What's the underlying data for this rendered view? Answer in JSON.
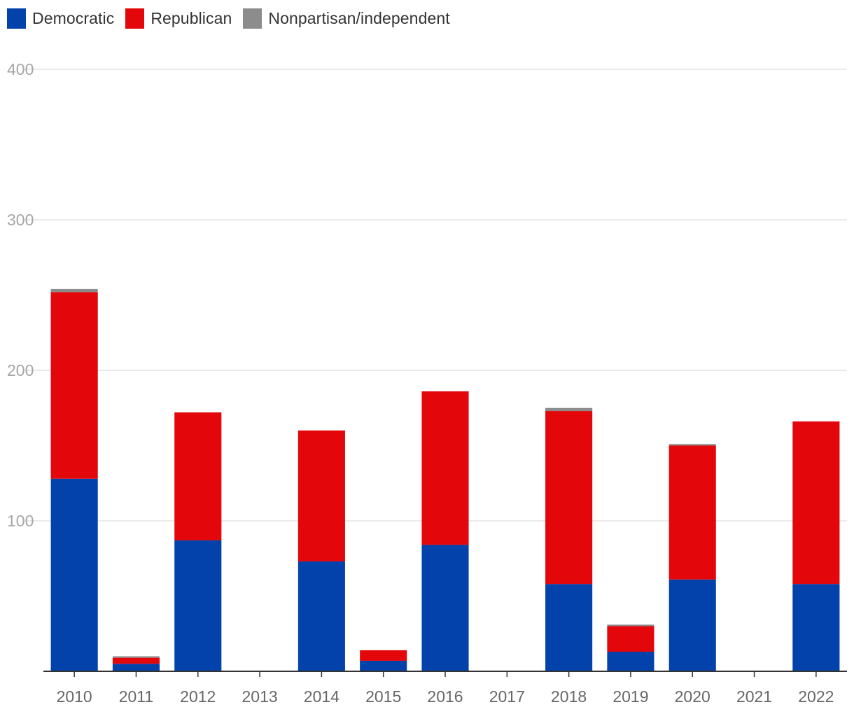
{
  "legend": [
    {
      "name": "Democratic",
      "color": "#0342ab"
    },
    {
      "name": "Republican",
      "color": "#e3070b"
    },
    {
      "name": "Nonpartisan/independent",
      "color": "#8c8c8c"
    }
  ],
  "chart_data": {
    "type": "bar",
    "stacked": true,
    "title": "",
    "xlabel": "",
    "ylabel": "",
    "ylim": [
      0,
      400
    ],
    "yticks": [
      100,
      200,
      300,
      400
    ],
    "grid": true,
    "legend_position": "top-left",
    "categories": [
      "2010",
      "2011",
      "2012",
      "2013",
      "2014",
      "2015",
      "2016",
      "2017",
      "2018",
      "2019",
      "2020",
      "2021",
      "2022"
    ],
    "series": [
      {
        "name": "Democratic",
        "color": "#0342ab",
        "values": [
          128,
          5,
          87,
          0,
          73,
          7,
          84,
          0,
          58,
          13,
          61,
          0,
          58
        ]
      },
      {
        "name": "Republican",
        "color": "#e3070b",
        "values": [
          124,
          4,
          85,
          0,
          87,
          7,
          102,
          0,
          115,
          17,
          89,
          0,
          108
        ]
      },
      {
        "name": "Nonpartisan/independent",
        "color": "#8c8c8c",
        "values": [
          2,
          1,
          0,
          0,
          0,
          0,
          0,
          0,
          2,
          1,
          1,
          0,
          0
        ]
      }
    ]
  }
}
